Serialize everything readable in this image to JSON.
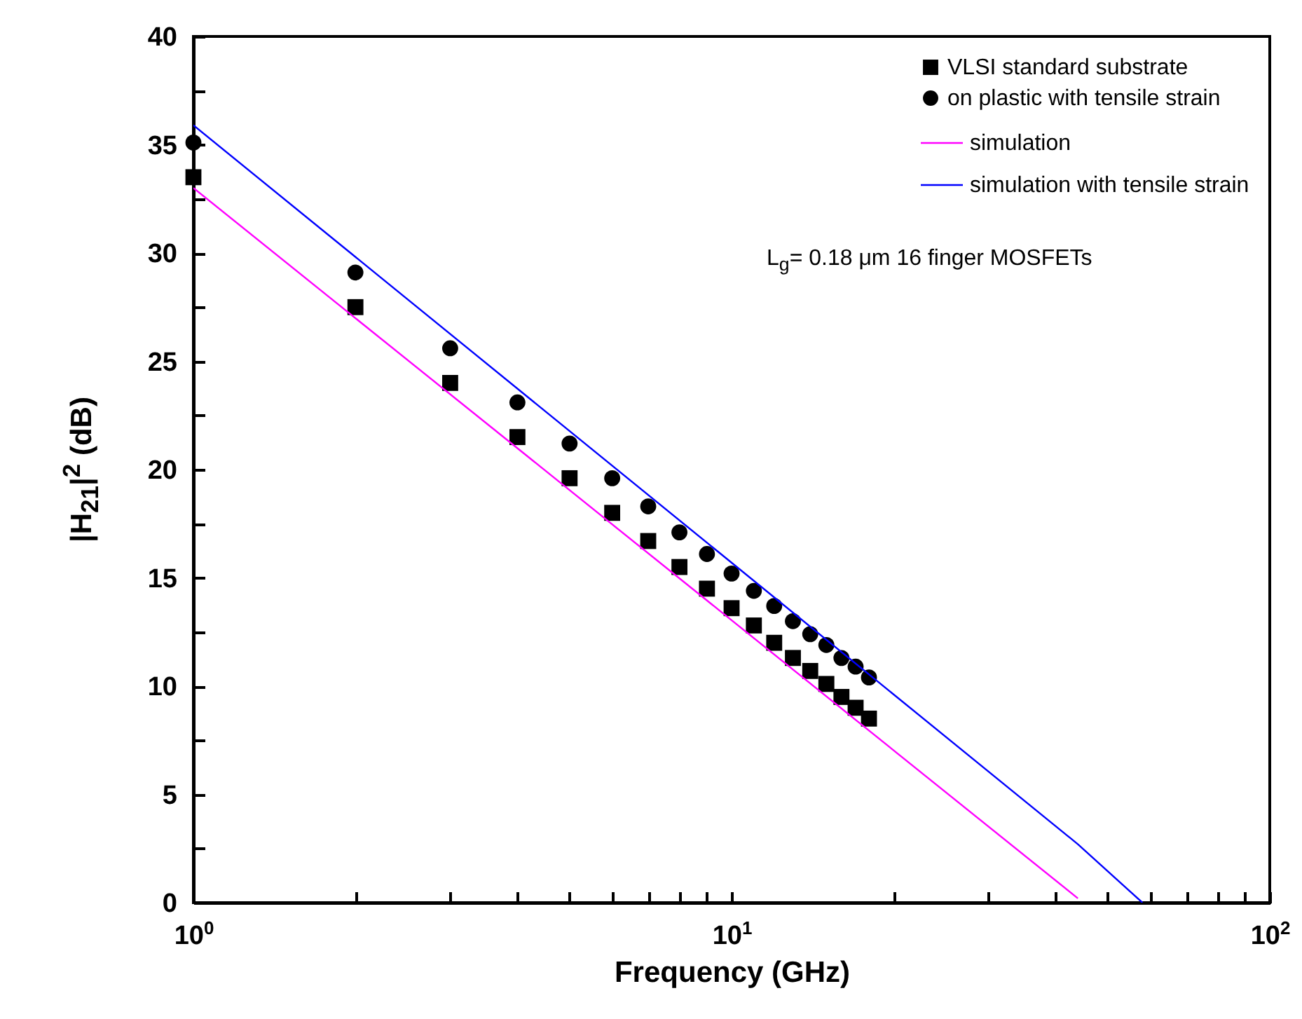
{
  "chart_data": {
    "type": "scatter",
    "xlabel": "Frequency (GHz)",
    "ylabel": "|H$_{21}$|$^{2}$ (dB)",
    "log": "x",
    "legend": "top right",
    "grid": false,
    "xlim": [
      1,
      100
    ],
    "xticks": [
      {
        "value": 1,
        "label": "10$^{0}$"
      },
      {
        "value": 2,
        "label": null
      },
      {
        "value": 3,
        "label": null
      },
      {
        "value": 4,
        "label": null
      },
      {
        "value": 5,
        "label": null
      },
      {
        "value": 6,
        "label": null
      },
      {
        "value": 7,
        "label": null
      },
      {
        "value": 8,
        "label": null
      },
      {
        "value": 9,
        "label": null
      },
      {
        "value": 10,
        "label": "10$^{1}$"
      },
      {
        "value": 20,
        "label": null
      },
      {
        "value": 30,
        "label": null
      },
      {
        "value": 40,
        "label": null
      },
      {
        "value": 50,
        "label": null
      },
      {
        "value": 60,
        "label": null
      },
      {
        "value": 70,
        "label": null
      },
      {
        "value": 80,
        "label": null
      },
      {
        "value": 90,
        "label": null
      },
      {
        "value": 100,
        "label": "10$^{2}$"
      }
    ],
    "ylim": [
      0,
      40
    ],
    "yticks": [
      0,
      {
        "value": 2.5,
        "label": null
      },
      5,
      {
        "value": 7.5,
        "label": null
      },
      10,
      {
        "value": 12.5,
        "label": null
      },
      15,
      {
        "value": 17.5,
        "label": null
      },
      20,
      {
        "value": 22.5,
        "label": null
      },
      25,
      {
        "value": 27.5,
        "label": null
      },
      30,
      {
        "value": 32.5,
        "label": null
      },
      35,
      {
        "value": 37.5,
        "label": null
      },
      40
    ],
    "x": [
      1,
      2,
      3,
      4,
      5,
      6,
      7,
      8,
      9,
      10,
      11,
      12,
      13,
      14,
      15,
      16,
      17,
      18
    ],
    "series": [
      {
        "name": "VLSI standard substrate",
        "type": "scatter",
        "marker": "square",
        "color": "#000000",
        "values": [
          33.5,
          27.5,
          24.0,
          21.5,
          19.6,
          18.0,
          16.7,
          15.5,
          14.5,
          13.6,
          12.8,
          12.0,
          11.3,
          10.7,
          10.1,
          9.5,
          9.0,
          8.5
        ]
      },
      {
        "name": "on plastic with tensile strain",
        "type": "scatter",
        "marker": "circle",
        "color": "#000000",
        "values": [
          35.1,
          29.1,
          25.6,
          23.1,
          21.2,
          19.6,
          18.3,
          17.1,
          16.1,
          15.2,
          14.4,
          13.7,
          13.0,
          12.4,
          11.9,
          11.3,
          10.9,
          10.4
        ]
      },
      {
        "name": "simulation",
        "type": "line",
        "color": "#ff00ff",
        "x": [
          1,
          44
        ],
        "values": [
          33.0,
          0.2
        ]
      },
      {
        "name": " simulation with tensile strain",
        "type": "line",
        "color": "#0000ff",
        "x": [
          1,
          44,
          58
        ],
        "values": [
          35.9,
          2.7,
          0
        ]
      }
    ],
    "annotations": [
      "L$_{g}$= 0.18 μm 16 finger MOSFETs"
    ]
  }
}
